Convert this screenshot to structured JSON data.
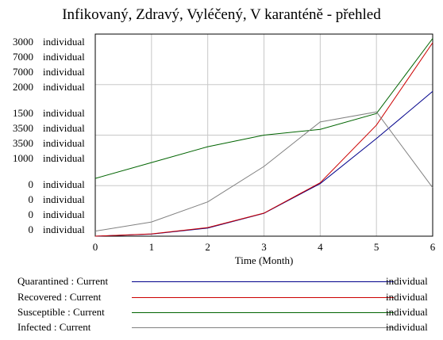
{
  "chart_data": {
    "type": "line",
    "title": "Infikovaný, Zdravý, Vyléčený, V karanténě - přehled",
    "xlabel": "Time (Month)",
    "x": [
      0,
      1,
      2,
      3,
      4,
      5,
      6
    ],
    "xlim": [
      0,
      6
    ],
    "xticks": [
      "0",
      "1",
      "2",
      "3",
      "4",
      "5",
      "6"
    ],
    "yaxes": [
      {
        "ticks": [
          "3000",
          "1500",
          "1000",
          "0"
        ],
        "unit": "individual",
        "lim": [
          0,
          3000
        ]
      },
      {
        "ticks": [
          "7000",
          "3500",
          "0"
        ],
        "unit": "individual",
        "lim": [
          0,
          7000
        ]
      },
      {
        "ticks": [
          "7000",
          "3500",
          "0"
        ],
        "unit": "individual",
        "lim": [
          0,
          7000
        ]
      },
      {
        "ticks": [
          "2000",
          "1000",
          "0"
        ],
        "unit": "individual",
        "lim": [
          0,
          2000
        ]
      }
    ],
    "grid": true,
    "series": [
      {
        "name": "Quarantined : Current",
        "unit": "individual",
        "color": "#00008b",
        "axis": 0,
        "values": [
          0,
          30,
          120,
          340,
          780,
          1450,
          2150
        ]
      },
      {
        "name": "Recovered : Current",
        "unit": "individual",
        "color": "#cc0000",
        "axis": 1,
        "values": [
          0,
          80,
          300,
          800,
          1850,
          3850,
          6700
        ]
      },
      {
        "name": "Susceptible : Current",
        "unit": "individual",
        "color": "#006400",
        "axis": 2,
        "values": [
          2000,
          2550,
          3100,
          3500,
          3700,
          4250,
          6850
        ]
      },
      {
        "name": "Infected : Current",
        "unit": "individual",
        "color": "#808080",
        "axis": 3,
        "values": [
          50,
          140,
          340,
          690,
          1130,
          1230,
          480
        ]
      }
    ]
  }
}
